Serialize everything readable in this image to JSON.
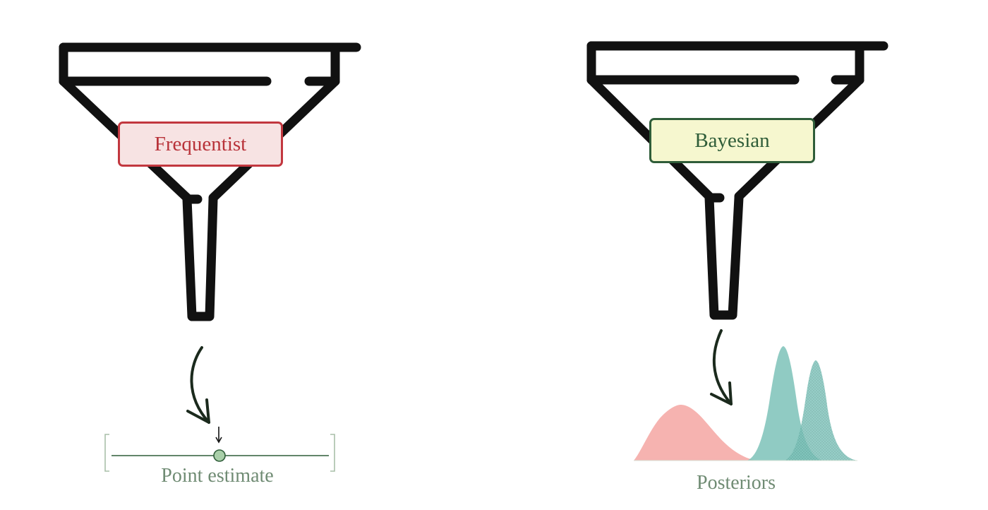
{
  "frequentist": {
    "label": "Frequentist",
    "box_fill": "#f7e3e3",
    "box_border": "#c2373f",
    "text_color": "#b83239",
    "output_caption": "Point estimate"
  },
  "bayesian": {
    "label": "Bayesian",
    "box_fill": "#f6f7cf",
    "box_border": "#2f5d39",
    "text_color": "#2f5d39",
    "output_caption": "Posteriors"
  },
  "colors": {
    "funnel_outline": "#111111",
    "arrow": "#1b2a1d",
    "axis_line": "#2f5d39",
    "bracket": "#a9bfa9",
    "point_fill": "#a9cfa9",
    "point_stroke": "#2f5d39",
    "posterior_pink": "#f4a6a2",
    "posterior_teal": "#7cc2b9",
    "posterior_teal_dark": "#6fb3a9"
  },
  "icons": {
    "funnel": "funnel-icon",
    "curved_arrow": "curved-arrow-icon",
    "point_marker": "point-marker-icon",
    "distribution": "distribution-curve-icon"
  }
}
